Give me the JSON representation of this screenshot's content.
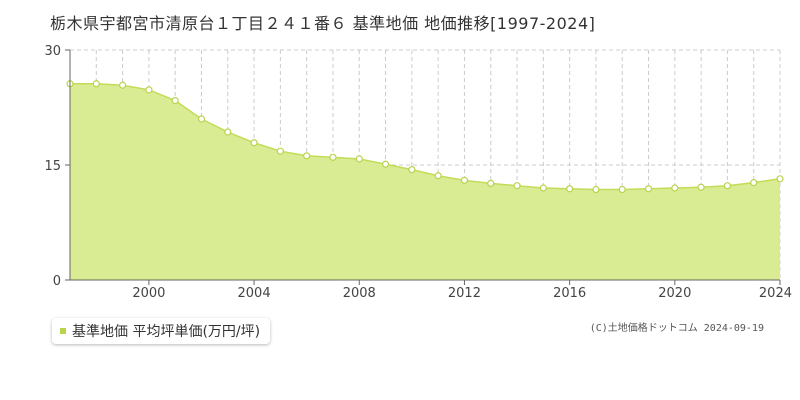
{
  "title": "栃木県宇都宮市清原台１丁目２４１番６ 基準地価 地価推移[1997-2024]",
  "credit": "(C)土地価格ドットコム 2024-09-19",
  "colors": {
    "area_fill": "#d9ec93",
    "line": "#c3dc58",
    "marker_fill": "#ffffff",
    "marker_stroke": "#b8d34c",
    "grid": "#cccccc",
    "axis": "#666666",
    "legend_swatch": "#b8d34c"
  },
  "legend": {
    "label": "基準地価 平均坪単価(万円/坪)"
  },
  "chart_data": {
    "type": "area",
    "title": "栃木県宇都宮市清原台１丁目２４１番６ 基準地価 地価推移[1997-2024]",
    "xlabel": "",
    "ylabel": "",
    "xlim": [
      1997,
      2024
    ],
    "ylim": [
      0,
      30
    ],
    "x_ticks": [
      2000,
      2004,
      2008,
      2012,
      2016,
      2020,
      2024
    ],
    "x_tick_labels": [
      "2000",
      "2004",
      "2008",
      "2012",
      "2016",
      "2020",
      "2024"
    ],
    "y_ticks": [
      0,
      15,
      30
    ],
    "y_tick_labels": [
      "0",
      "15",
      "30"
    ],
    "grid": true,
    "legend_position": "bottom-left",
    "series": [
      {
        "name": "基準地価 平均坪単価(万円/坪)",
        "x": [
          1997,
          1998,
          1999,
          2000,
          2001,
          2002,
          2003,
          2004,
          2005,
          2006,
          2007,
          2008,
          2009,
          2010,
          2011,
          2012,
          2013,
          2014,
          2015,
          2016,
          2017,
          2018,
          2019,
          2020,
          2021,
          2022,
          2023,
          2024
        ],
        "values": [
          25.6,
          25.6,
          25.4,
          24.8,
          23.4,
          21.0,
          19.3,
          17.9,
          16.8,
          16.2,
          16.0,
          15.8,
          15.1,
          14.4,
          13.6,
          13.0,
          12.6,
          12.3,
          12.0,
          11.9,
          11.8,
          11.8,
          11.9,
          12.0,
          12.1,
          12.3,
          12.7,
          13.2
        ]
      }
    ]
  }
}
